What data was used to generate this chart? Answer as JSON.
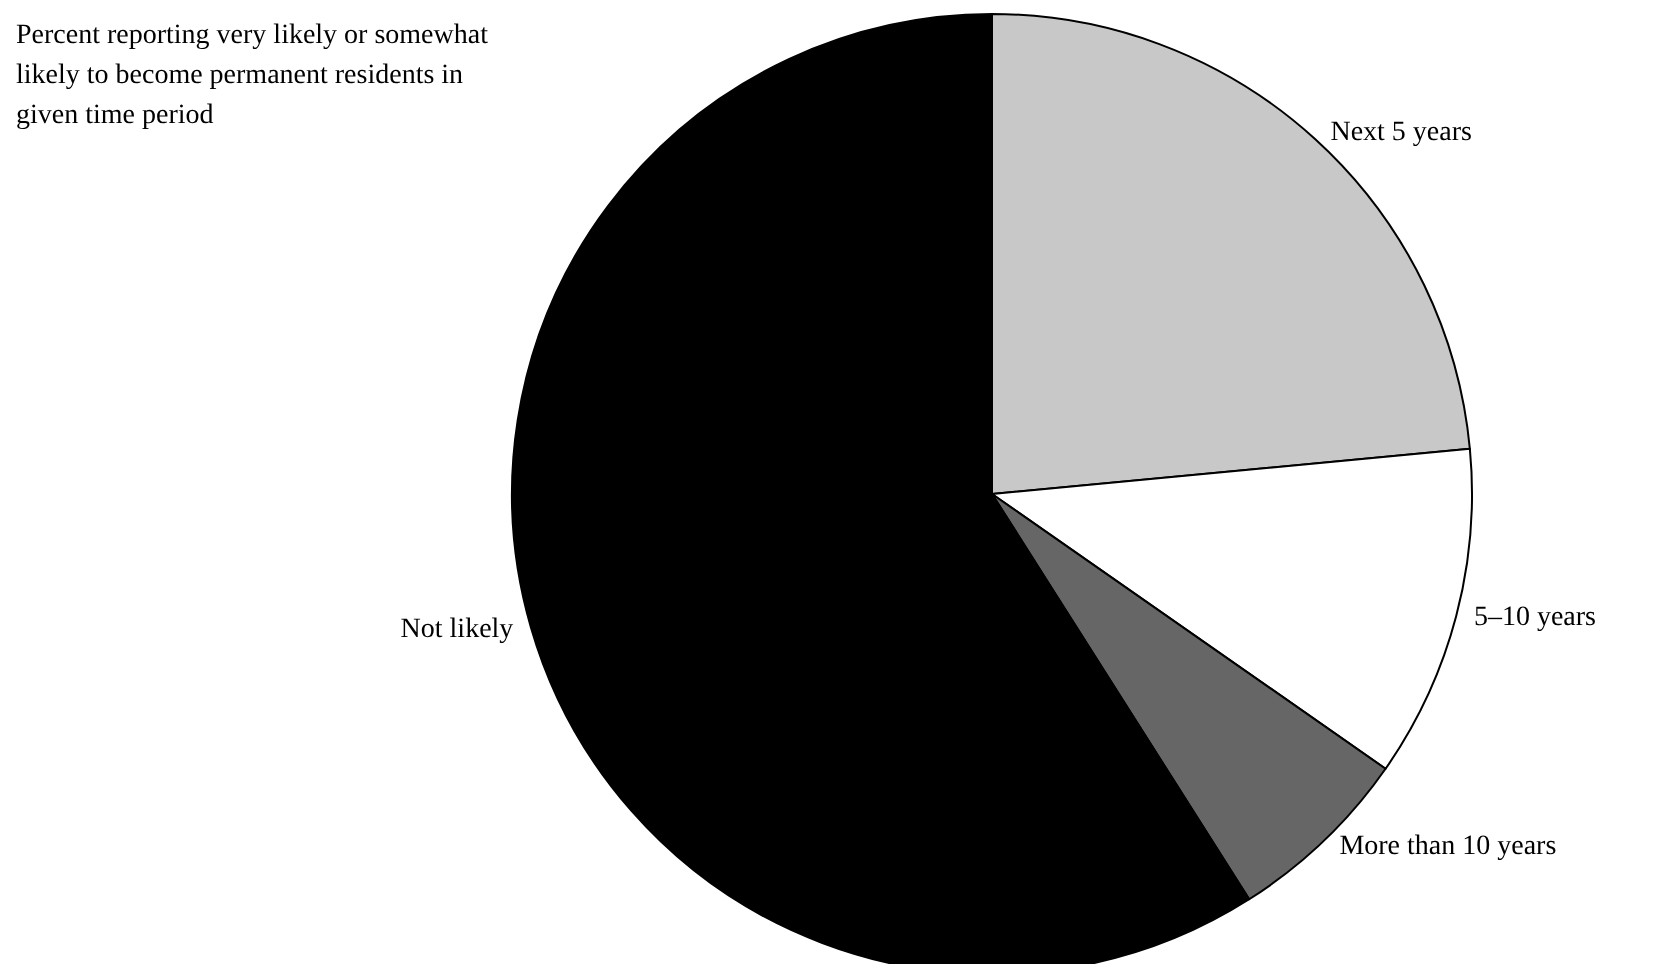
{
  "chart_data": {
    "type": "pie",
    "categories": [
      "Next 5 years",
      "5–10 years",
      "More than 10 years",
      "Not likely"
    ],
    "values": [
      23.5,
      11.2,
      6.3,
      59
    ],
    "colors": [
      "#c8c8c8",
      "#ffffff",
      "#666666",
      "#000000"
    ],
    "annotations": [
      "Percent reporting very likely or somewhat likely to become permanent residents in given time period"
    ],
    "legend": false
  }
}
